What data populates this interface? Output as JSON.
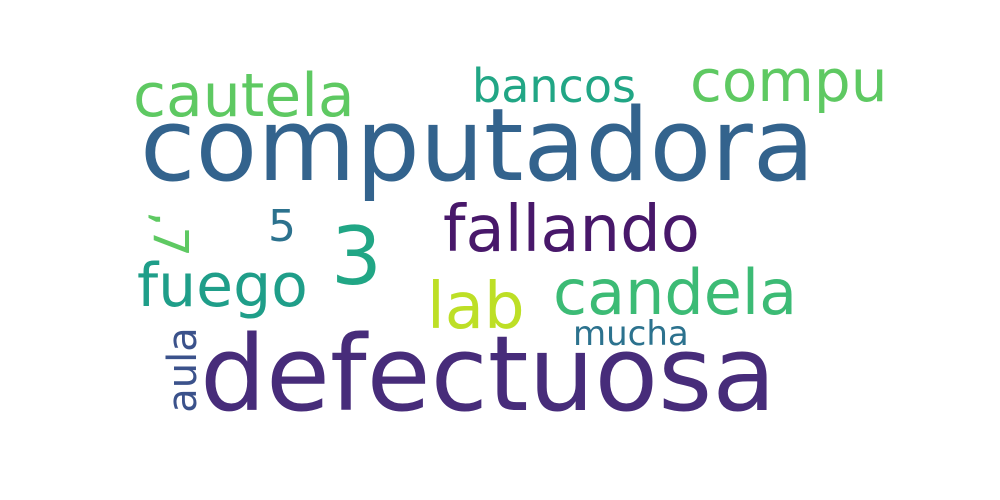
{
  "words": [
    {
      "text": "computadora",
      "color": "#33638d",
      "orientation": "horizontal"
    },
    {
      "text": "defectuosa",
      "color": "#472c7a",
      "orientation": "horizontal"
    },
    {
      "text": "cautela",
      "color": "#5ec962",
      "orientation": "horizontal"
    },
    {
      "text": "bancos",
      "color": "#21a685",
      "orientation": "horizontal"
    },
    {
      "text": "compu",
      "color": "#5ec962",
      "orientation": "horizontal"
    },
    {
      "text": "fallando",
      "color": "#48186a",
      "orientation": "horizontal"
    },
    {
      "text": "3",
      "color": "#21a685",
      "orientation": "horizontal"
    },
    {
      "text": "5",
      "color": "#2c728e",
      "orientation": "horizontal"
    },
    {
      "text": ",7",
      "color": "#5ec962",
      "orientation": "vertical"
    },
    {
      "text": "fuego",
      "color": "#1f9e89",
      "orientation": "horizontal"
    },
    {
      "text": "candela",
      "color": "#3cbb75",
      "orientation": "horizontal"
    },
    {
      "text": "lab",
      "color": "#bddf26",
      "orientation": "horizontal"
    },
    {
      "text": "mucha",
      "color": "#2c728e",
      "orientation": "horizontal"
    },
    {
      "text": "aula",
      "color": "#3b528b",
      "orientation": "vertical"
    }
  ]
}
